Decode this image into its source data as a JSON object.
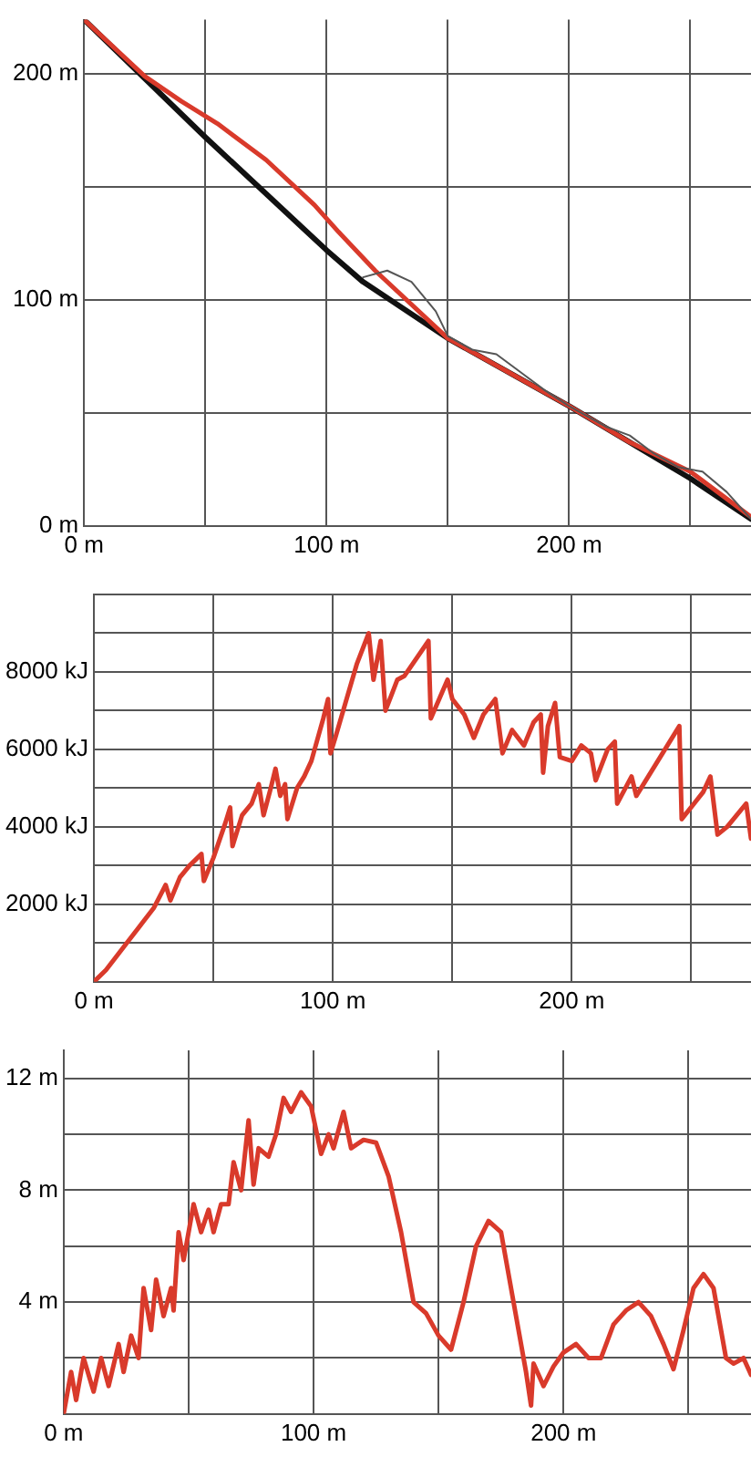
{
  "chart_data": [
    {
      "type": "line",
      "xlim": [
        0,
        275
      ],
      "ylim": [
        0,
        224
      ],
      "grid": true,
      "legend": false,
      "marker": "none",
      "xticks": [
        {
          "value": 0,
          "label": "0 m"
        },
        {
          "value": 50,
          "label": null
        },
        {
          "value": 100,
          "label": "100 m"
        },
        {
          "value": 150,
          "label": null
        },
        {
          "value": 200,
          "label": "200 m"
        },
        {
          "value": 250,
          "label": null
        }
      ],
      "yticks": [
        {
          "value": 0,
          "label": "0 m"
        },
        {
          "value": 50,
          "label": null
        },
        {
          "value": 100,
          "label": "100 m"
        },
        {
          "value": 150,
          "label": null
        },
        {
          "value": 200,
          "label": "200 m"
        }
      ],
      "series": [
        {
          "color": "#555555",
          "x": [
            115,
            125,
            135,
            145,
            150,
            160,
            170,
            180,
            190,
            200,
            215,
            225,
            235,
            245,
            255,
            265,
            275
          ],
          "values": [
            110,
            113,
            108,
            95,
            84,
            78,
            76,
            68,
            60,
            53,
            44,
            40,
            32,
            26,
            24,
            15,
            3
          ]
        },
        {
          "color": "#d93a2b",
          "x": [
            0,
            25,
            40,
            55,
            75,
            95,
            105,
            120,
            150,
            175,
            200,
            225,
            250,
            275
          ],
          "values": [
            224,
            199,
            188,
            178,
            162,
            142,
            130,
            113,
            83,
            68,
            53,
            37,
            24,
            4
          ]
        },
        {
          "color": "#111111",
          "x": [
            0,
            50,
            100,
            115,
            150,
            200,
            250,
            275
          ],
          "values": [
            224,
            172,
            122,
            108,
            83,
            53,
            21,
            3
          ]
        }
      ]
    },
    {
      "type": "line",
      "xlim": [
        0,
        275
      ],
      "ylim": [
        0,
        10000
      ],
      "grid": true,
      "legend": false,
      "marker": "none",
      "xticks": [
        {
          "value": 0,
          "label": "0 m"
        },
        {
          "value": 50,
          "label": null
        },
        {
          "value": 100,
          "label": "100 m"
        },
        {
          "value": 150,
          "label": null
        },
        {
          "value": 200,
          "label": "200 m"
        },
        {
          "value": 250,
          "label": null
        }
      ],
      "yticks": [
        {
          "value": 1000,
          "label": null
        },
        {
          "value": 2000,
          "label": "2000 kJ"
        },
        {
          "value": 3000,
          "label": null
        },
        {
          "value": 4000,
          "label": "4000 kJ"
        },
        {
          "value": 5000,
          "label": null
        },
        {
          "value": 6000,
          "label": "6000 kJ"
        },
        {
          "value": 7000,
          "label": null
        },
        {
          "value": 8000,
          "label": "8000 kJ"
        },
        {
          "value": 9000,
          "label": null
        },
        {
          "value": 10000,
          "label": null
        }
      ],
      "series": [
        {
          "color": "#d93a2b",
          "x": [
            0,
            5,
            10,
            15,
            20,
            25,
            30,
            32,
            36,
            40,
            45,
            46,
            50,
            55,
            57,
            58,
            62,
            66,
            69,
            71,
            74,
            76,
            78,
            80,
            81,
            85,
            88,
            91,
            96,
            98,
            99,
            101,
            110,
            115,
            117,
            120,
            122,
            127,
            130,
            140,
            141,
            148,
            150,
            155,
            159,
            163,
            168,
            171,
            175,
            180,
            184,
            187,
            188,
            190,
            193,
            195,
            200,
            204,
            208,
            210,
            215,
            218,
            219,
            225,
            227,
            245,
            246,
            255,
            258,
            261,
            265,
            273,
            275
          ],
          "values": [
            0,
            300,
            700,
            1100,
            1500,
            1900,
            2500,
            2100,
            2700,
            3000,
            3300,
            2600,
            3200,
            4100,
            4500,
            3500,
            4300,
            4600,
            5100,
            4300,
            5000,
            5500,
            4800,
            5100,
            4200,
            5000,
            5300,
            5700,
            6800,
            7300,
            5900,
            6300,
            8200,
            9000,
            7800,
            8800,
            7000,
            7800,
            7900,
            8800,
            6800,
            7800,
            7300,
            6900,
            6300,
            6900,
            7300,
            5900,
            6500,
            6100,
            6700,
            6900,
            5400,
            6600,
            7200,
            5800,
            5700,
            6100,
            5900,
            5200,
            6000,
            6200,
            4600,
            5300,
            4800,
            6600,
            4200,
            4900,
            5300,
            3800,
            4000,
            4600,
            3700
          ]
        }
      ]
    },
    {
      "type": "line",
      "xlim": [
        0,
        275
      ],
      "ylim": [
        0,
        13
      ],
      "grid": true,
      "legend": false,
      "marker": "none",
      "xticks": [
        {
          "value": 0,
          "label": "0 m"
        },
        {
          "value": 50,
          "label": null
        },
        {
          "value": 100,
          "label": "100 m"
        },
        {
          "value": 150,
          "label": null
        },
        {
          "value": 200,
          "label": "200 m"
        },
        {
          "value": 250,
          "label": null
        }
      ],
      "yticks": [
        {
          "value": 2,
          "label": null
        },
        {
          "value": 4,
          "label": "4 m"
        },
        {
          "value": 6,
          "label": null
        },
        {
          "value": 8,
          "label": "8 m"
        },
        {
          "value": 10,
          "label": null
        },
        {
          "value": 12,
          "label": "12 m"
        }
      ],
      "series": [
        {
          "color": "#d93a2b",
          "x": [
            0,
            3,
            5,
            8,
            12,
            15,
            18,
            22,
            24,
            27,
            30,
            32,
            35,
            37,
            40,
            43,
            44,
            46,
            48,
            52,
            55,
            58,
            60,
            63,
            66,
            68,
            71,
            74,
            76,
            78,
            82,
            85,
            88,
            91,
            95,
            99,
            103,
            106,
            108,
            112,
            115,
            120,
            125,
            130,
            135,
            140,
            145,
            150,
            155,
            160,
            165,
            170,
            175,
            180,
            185,
            187,
            188,
            192,
            196,
            200,
            205,
            210,
            215,
            220,
            225,
            230,
            235,
            240,
            244,
            248,
            252,
            256,
            260,
            265,
            268,
            272,
            275
          ],
          "values": [
            0,
            1.5,
            0.5,
            2,
            0.8,
            2,
            1,
            2.5,
            1.5,
            2.8,
            2,
            4.5,
            3,
            4.8,
            3.5,
            4.5,
            3.7,
            6.5,
            5.5,
            7.5,
            6.5,
            7.3,
            6.5,
            7.5,
            7.5,
            9,
            8,
            10.5,
            8.2,
            9.5,
            9.2,
            10,
            11.3,
            10.8,
            11.5,
            11,
            9.3,
            10,
            9.5,
            10.8,
            9.5,
            9.8,
            9.7,
            8.5,
            6.5,
            4,
            3.6,
            2.8,
            2.3,
            4,
            6,
            6.9,
            6.5,
            4,
            1.5,
            0.3,
            1.8,
            1,
            1.7,
            2.2,
            2.5,
            2,
            2,
            3.2,
            3.7,
            4,
            3.5,
            2.5,
            1.6,
            3,
            4.5,
            5,
            4.5,
            2,
            1.8,
            2,
            1.4
          ]
        }
      ]
    }
  ]
}
